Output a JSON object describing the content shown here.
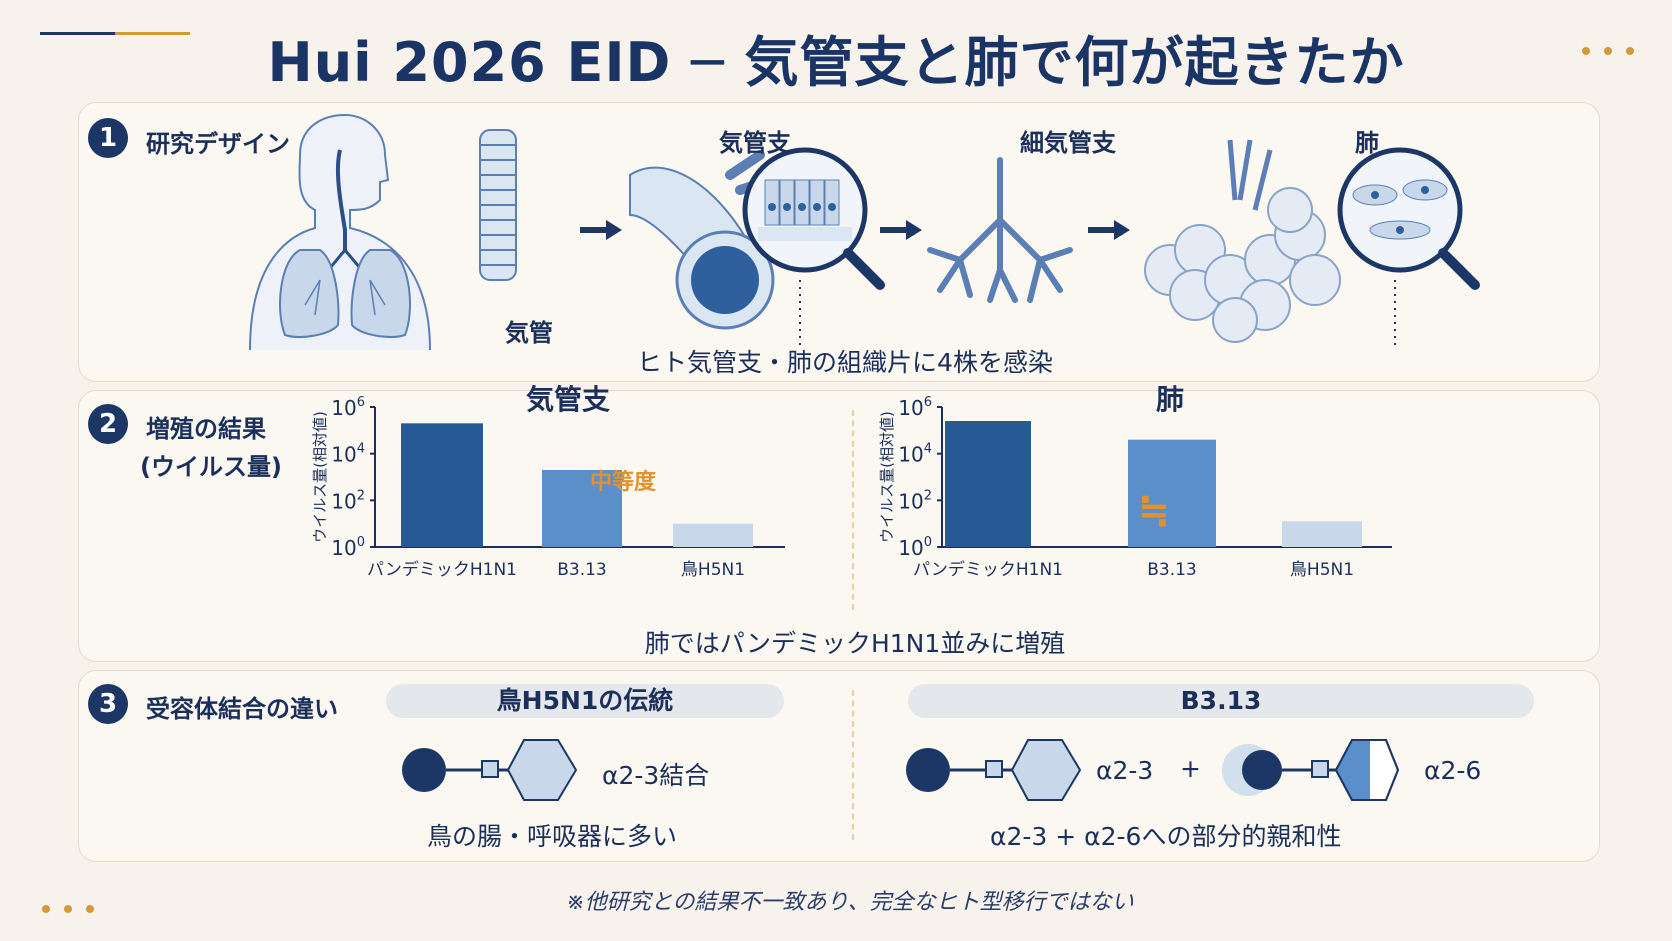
{
  "title": "Hui 2026 EID ─ 気管支と肺で何が起きたか",
  "colors": {
    "navy": "#1c3766",
    "mid_blue": "#5b8fc9",
    "light_blue": "#c8d8ea",
    "orange": "#e0922c"
  },
  "section1": {
    "number": "1",
    "label": "研究デザイン",
    "trachea_label": "気管",
    "bronchus_label": "気管支",
    "bronchiole_label": "細気管支",
    "lung_label": "肺",
    "caption": "ヒト気管支・肺の組織片に4株を感染",
    "icons": [
      "human-torso-lungs-icon",
      "trachea-icon",
      "arrow-right-icon",
      "bronchus-tube-icon",
      "magnifier-epithelium-icon",
      "bronchiole-tree-icon",
      "alveoli-cluster-icon",
      "magnifier-alveolar-cells-icon"
    ]
  },
  "section2": {
    "number": "2",
    "label_line1": "増殖の結果",
    "label_line2": "(ウイルス量)",
    "caption": "肺ではパンデミックH1N1並みに増殖",
    "annotation_moderate": "中等度",
    "approx_equal_symbol": "≒"
  },
  "chart_data": [
    {
      "type": "bar",
      "title": "気管支",
      "ylabel": "ウイルス量(相対値)",
      "yscale": "log10",
      "ylim_exponent": [
        0,
        6
      ],
      "yticks": [
        {
          "base": "10",
          "exp": "6"
        },
        {
          "base": "10",
          "exp": "4"
        },
        {
          "base": "10",
          "exp": "2"
        },
        {
          "base": "10",
          "exp": "0"
        }
      ],
      "categories": [
        "パンデミックH1N1",
        "B3.13",
        "鳥H5N1"
      ],
      "values_exponent": [
        5.3,
        3.3,
        1.0
      ],
      "colors": [
        "#275a94",
        "#5b8fc9",
        "#c8d8ea"
      ]
    },
    {
      "type": "bar",
      "title": "肺",
      "ylabel": "ウイルス量(相対値)",
      "yscale": "log10",
      "ylim_exponent": [
        0,
        6
      ],
      "yticks": [
        {
          "base": "10",
          "exp": "6"
        },
        {
          "base": "10",
          "exp": "4"
        },
        {
          "base": "10",
          "exp": "2"
        },
        {
          "base": "10",
          "exp": "0"
        }
      ],
      "categories": [
        "パンデミックH1N1",
        "B3.13",
        "鳥H5N1"
      ],
      "values_exponent": [
        5.4,
        4.6,
        1.1
      ],
      "colors": [
        "#275a94",
        "#5b8fc9",
        "#c8d8ea"
      ]
    }
  ],
  "section3": {
    "number": "3",
    "label": "受容体結合の違い",
    "left_pill": "鳥H5N1の伝統",
    "left_binding": "α2-3結合",
    "left_caption": "鳥の腸・呼吸器に多い",
    "right_pill": "B3.13",
    "right_binding_a": "α2-3",
    "right_plus": "+",
    "right_binding_b": "α2-6",
    "right_caption": "α2-3 + α2-6への部分的親和性"
  },
  "footnote": "※他研究との結果不一致あり、完全なヒト型移行ではない"
}
